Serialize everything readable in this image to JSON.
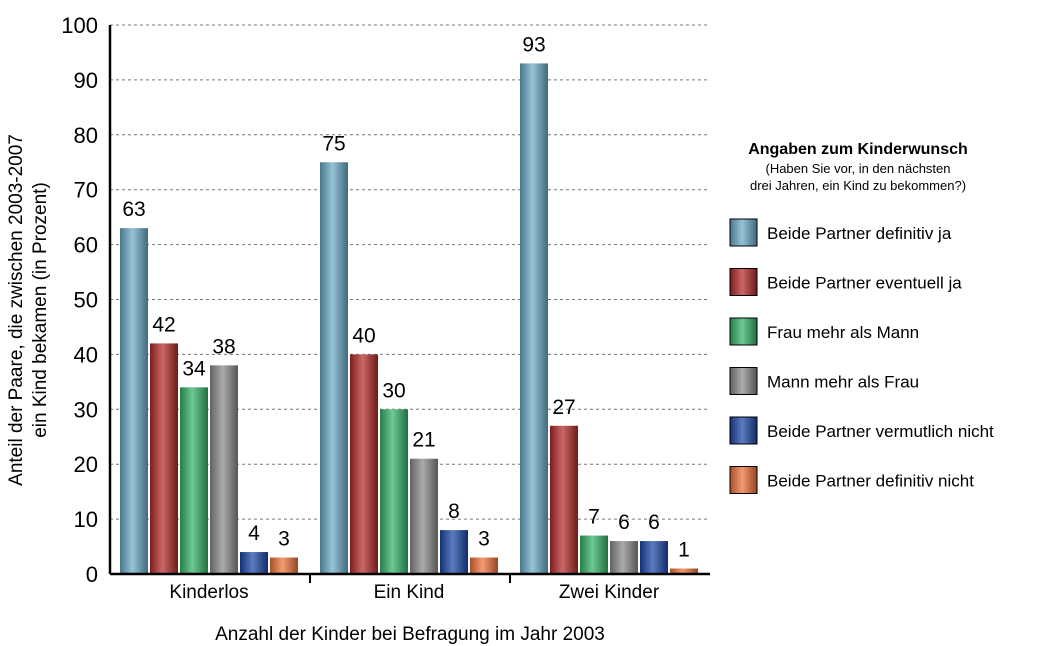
{
  "chart_data": {
    "type": "bar",
    "categories": [
      "Kinderlos",
      "Ein Kind",
      "Zwei Kinder"
    ],
    "series": [
      {
        "name": "Beide Partner definitiv ja",
        "values": [
          63,
          75,
          93
        ],
        "color": "#6aaac8"
      },
      {
        "name": "Beide Partner eventuell ja",
        "values": [
          42,
          40,
          27
        ],
        "color": "#b52a2a"
      },
      {
        "name": "Frau mehr als Mann",
        "values": [
          34,
          30,
          7
        ],
        "color": "#36b36a"
      },
      {
        "name": "Mann mehr als Frau",
        "values": [
          38,
          21,
          6
        ],
        "color": "#8a8a8a"
      },
      {
        "name": "Beide Partner vermutlich nicht",
        "values": [
          4,
          8,
          6
        ],
        "color": "#1d47a8"
      },
      {
        "name": "Beide Partner definitiv nicht",
        "values": [
          3,
          3,
          1
        ],
        "color": "#f0733a"
      }
    ],
    "xlabel": "Anzahl der Kinder bei Befragung im Jahr 2003",
    "ylabel_lines": [
      "Anteil der Paare, die zwischen 2003-2007",
      "ein Kind bekamen (in Prozent)"
    ],
    "ylim": [
      0,
      100
    ],
    "yticks": [
      "0",
      "10",
      "20",
      "30",
      "40",
      "50",
      "60",
      "70",
      "80",
      "90",
      "100"
    ],
    "grid": true,
    "legend": {
      "title": "Angaben zum Kinderwunsch",
      "subtitle_lines": [
        "(Haben Sie vor, in den nächsten",
        "drei Jahren, ein Kind zu bekommen?)"
      ],
      "placement": "right"
    }
  }
}
